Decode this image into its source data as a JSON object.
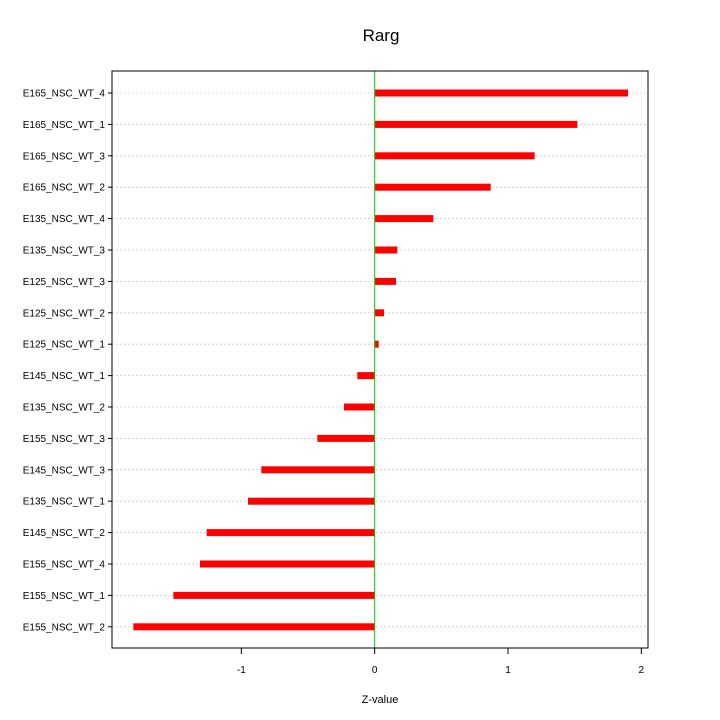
{
  "chart_data": {
    "type": "bar",
    "orientation": "horizontal",
    "title": "Rarg",
    "xlabel": "Z-value",
    "ylabel": "",
    "xlim": [
      -1.97,
      2.05
    ],
    "xticks": [
      -1,
      0,
      1,
      2
    ],
    "grid": true,
    "bar_color": "#ff0000",
    "zero_line_color": "#00cc00",
    "categories": [
      "E165_NSC_WT_4",
      "E165_NSC_WT_1",
      "E165_NSC_WT_3",
      "E165_NSC_WT_2",
      "E135_NSC_WT_4",
      "E135_NSC_WT_3",
      "E125_NSC_WT_3",
      "E125_NSC_WT_2",
      "E125_NSC_WT_1",
      "E145_NSC_WT_1",
      "E135_NSC_WT_2",
      "E155_NSC_WT_3",
      "E145_NSC_WT_3",
      "E135_NSC_WT_1",
      "E145_NSC_WT_2",
      "E155_NSC_WT_4",
      "E155_NSC_WT_1",
      "E155_NSC_WT_2"
    ],
    "values": [
      1.9,
      1.52,
      1.2,
      0.87,
      0.44,
      0.17,
      0.16,
      0.07,
      0.03,
      -0.13,
      -0.23,
      -0.43,
      -0.85,
      -0.95,
      -1.26,
      -1.31,
      -1.51,
      -1.81
    ]
  }
}
